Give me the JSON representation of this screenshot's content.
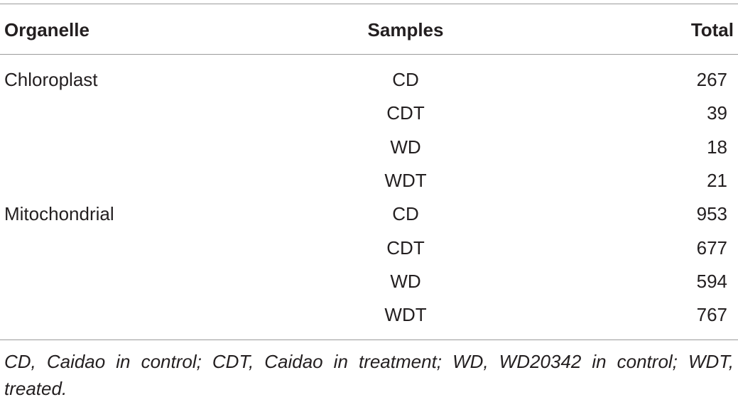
{
  "table": {
    "header": [
      "Organelle",
      "Samples",
      "Total"
    ],
    "groups": [
      {
        "organelle": "Chloroplast",
        "rows": [
          {
            "sample": "CD",
            "total": 267
          },
          {
            "sample": "CDT",
            "total": 39
          },
          {
            "sample": "WD",
            "total": 18
          },
          {
            "sample": "WDT",
            "total": 21
          }
        ]
      },
      {
        "organelle": "Mitochondrial",
        "rows": [
          {
            "sample": "CD",
            "total": 953
          },
          {
            "sample": "CDT",
            "total": 677
          },
          {
            "sample": "WD",
            "total": 594
          },
          {
            "sample": "WDT",
            "total": 767
          }
        ]
      }
    ],
    "footnote": "CD, Caidao in control; CDT, Caidao in treatment; WD, WD20342 in control; WDT, treated."
  }
}
